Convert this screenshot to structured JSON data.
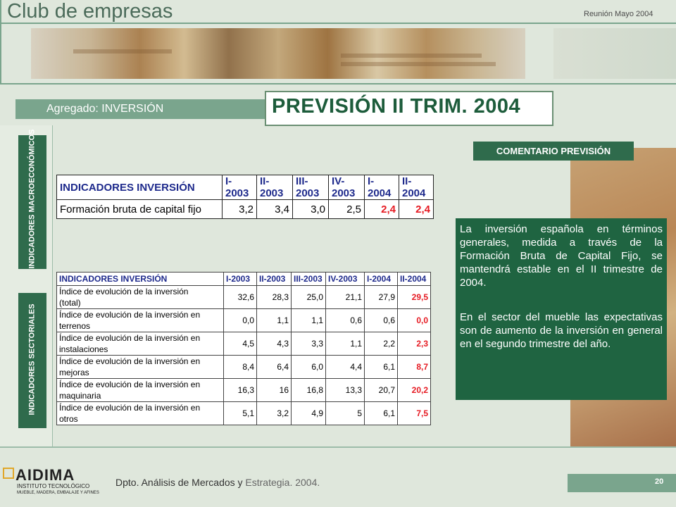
{
  "header": {
    "title": "Club de empresas",
    "meeting": "Reunión Mayo 2004"
  },
  "section": {
    "aggregate_label": "Agregado: INVERSIÓN",
    "forecast_title": "PREVISIÓN II TRIM. 2004"
  },
  "side_tabs": {
    "macro": "INDICADORES MACROECONÓMICOS",
    "sector": "INDICADORES SECTORIALES"
  },
  "table_macro": {
    "headers": [
      "INDICADORES INVERSIÓN",
      "I-2003",
      "II-2003",
      "III-2003",
      "IV-2003",
      "I-2004",
      "II-2004"
    ],
    "rows": [
      {
        "label": "Formación bruta de capital fijo",
        "values": [
          "3,2",
          "3,4",
          "3,0",
          "2,5",
          "2,4",
          "2,4"
        ]
      }
    ]
  },
  "table_sector": {
    "headers": [
      "INDICADORES INVERSIÓN",
      "I-2003",
      "II-2003",
      "III-2003",
      "IV-2003",
      "I-2004",
      "II-2004"
    ],
    "rows": [
      {
        "label1": "Índice de evolución de la inversión",
        "label2": "(total)",
        "values": [
          "32,6",
          "28,3",
          "25,0",
          "21,1",
          "27,9",
          "29,5"
        ]
      },
      {
        "label1": "Índice de evolución de la inversión en",
        "label2": "terrenos",
        "values": [
          "0,0",
          "1,1",
          "1,1",
          "0,6",
          "0,6",
          "0,0"
        ]
      },
      {
        "label1": "Índice de evolución de la inversión en",
        "label2": "instalaciones",
        "values": [
          "4,5",
          "4,3",
          "3,3",
          "1,1",
          "2,2",
          "2,3"
        ]
      },
      {
        "label1": "Índice de evolución de la inversión en",
        "label2": "mejoras",
        "values": [
          "8,4",
          "6,4",
          "6,0",
          "4,4",
          "6,1",
          "8,7"
        ]
      },
      {
        "label1": "Índice de evolución de la inversión en",
        "label2": "maquinaria",
        "values": [
          "16,3",
          "16",
          "16,8",
          "13,3",
          "20,7",
          "20,2"
        ]
      },
      {
        "label1": "Índice de evolución de la inversión en",
        "label2": "otros",
        "values": [
          "5,1",
          "3,2",
          "4,9",
          "5",
          "6,1",
          "7,5"
        ]
      }
    ]
  },
  "comment": {
    "heading": "COMENTARIO PREVISIÓN",
    "paragraph1": "La inversión española en términos generales, medida a través de la Formación Bruta de Capital Fijo, se mantendrá estable en el II trimestre de 2004.",
    "paragraph2": "En el sector del mueble las expectativas son de aumento de la inversión en general en el segundo trimestre del año."
  },
  "footer": {
    "logo_name": "AIDIMA",
    "logo_sub1": "INSTITUTO TECNOLÓGICO",
    "logo_sub2": "MUEBLE, MADERA, EMBALAJE Y AFINES",
    "dept_main": "Dpto. Análisis de Mercados y",
    "dept_rest": "Estrategia. 2004.",
    "page": "20"
  },
  "colors": {
    "accent_green": "#2f6b4c",
    "light_green": "#7aa58d",
    "forecast_red": "#e61b23",
    "header_blue": "#1e2a8c"
  }
}
